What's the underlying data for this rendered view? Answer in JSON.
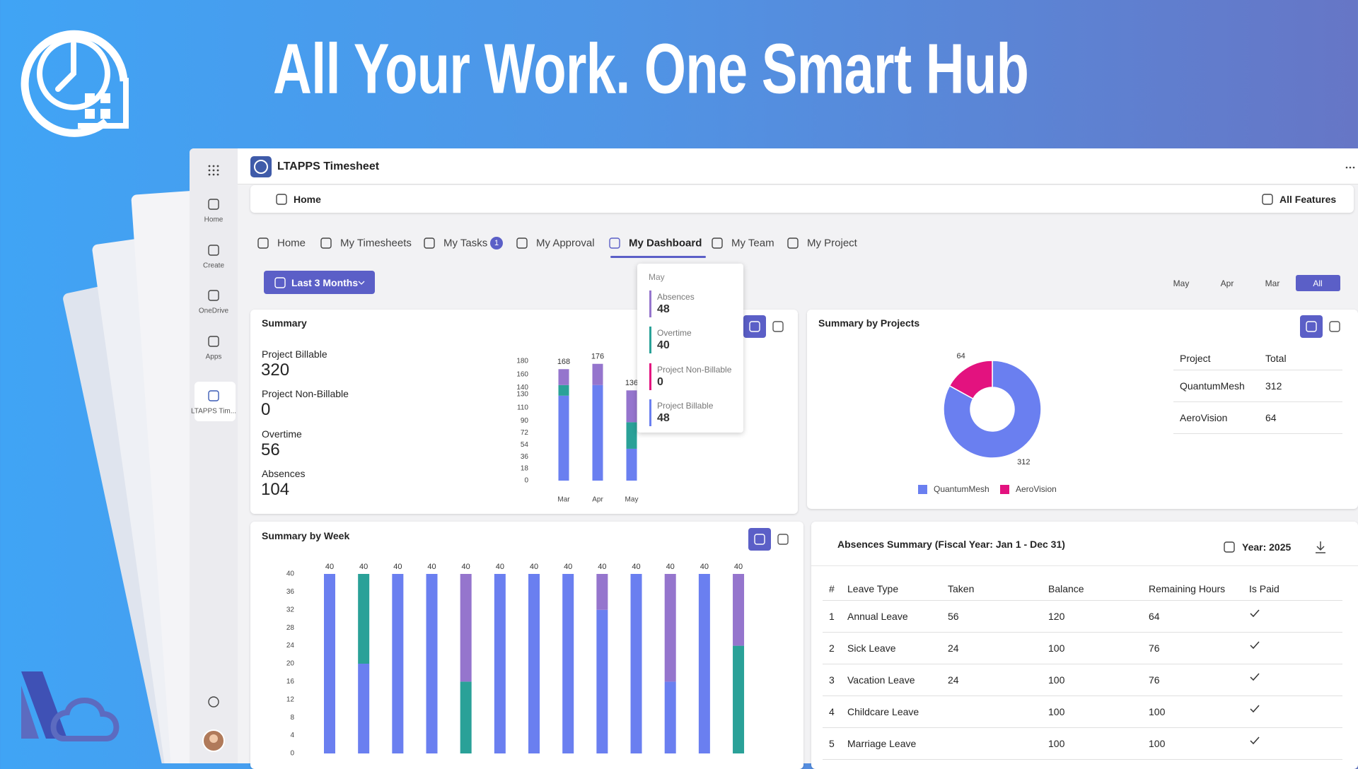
{
  "banner": {
    "headline": "All Your Work. One Smart Hub"
  },
  "app": {
    "title": "LTAPPS Timesheet",
    "rail": [
      "Home",
      "Create",
      "OneDrive",
      "Apps",
      "LTAPPS Tim..."
    ],
    "breadcrumb": "Home",
    "all_features": "All Features"
  },
  "tabs": {
    "items": [
      "Home",
      "My Timesheets",
      "My Tasks",
      "My Approval",
      "My Dashboard",
      "My Team",
      "My Project"
    ],
    "active": "My Dashboard",
    "tasks_badge": 1
  },
  "filter": {
    "range": "Last 3 Months",
    "periods": [
      "May",
      "Apr",
      "Mar",
      "All"
    ],
    "selected": "All"
  },
  "summary": {
    "title": "Summary",
    "stats": [
      {
        "label": "Project Billable",
        "value": 320
      },
      {
        "label": "Project Non-Billable",
        "value": 0
      },
      {
        "label": "Overtime",
        "value": 56
      },
      {
        "label": "Absences",
        "value": 104
      }
    ]
  },
  "summary_chart": {
    "type": "bar",
    "stacked": true,
    "categories": [
      "Mar",
      "Apr",
      "May"
    ],
    "series": [
      {
        "name": "Project Billable",
        "color": "#6a7ff0",
        "values": [
          128,
          144,
          48
        ]
      },
      {
        "name": "Project Non-Billable",
        "color": "#e3127f",
        "values": [
          0,
          0,
          0
        ]
      },
      {
        "name": "Overtime",
        "color": "#2aa198",
        "values": [
          16,
          0,
          40
        ]
      },
      {
        "name": "Absences",
        "color": "#9575cd",
        "values": [
          24,
          32,
          48
        ]
      }
    ],
    "totals": [
      168,
      176,
      136
    ],
    "ylim": [
      0,
      180
    ],
    "yticks": [
      0,
      18,
      36,
      54,
      72,
      90,
      110,
      130,
      140,
      160,
      180
    ]
  },
  "tooltip": {
    "title": "May",
    "items": [
      {
        "label": "Absences",
        "value": 48,
        "color": "#9575cd"
      },
      {
        "label": "Overtime",
        "value": 40,
        "color": "#2aa198"
      },
      {
        "label": "Project Non-Billable",
        "value": 0,
        "color": "#e3127f"
      },
      {
        "label": "Project Billable",
        "value": 48,
        "color": "#6a7ff0"
      }
    ]
  },
  "projects": {
    "title": "Summary by Projects",
    "chart": {
      "type": "pie",
      "donut": true,
      "categories": [
        "QuantumMesh",
        "AeroVision"
      ],
      "values": [
        312,
        64
      ],
      "colors": [
        "#6a7ff0",
        "#e3127f"
      ]
    },
    "table": {
      "headers": [
        "Project",
        "Total"
      ],
      "rows": [
        [
          "QuantumMesh",
          312
        ],
        [
          "AeroVision",
          64
        ]
      ]
    }
  },
  "week": {
    "title": "Summary by Week",
    "chart": {
      "type": "bar",
      "stacked": true,
      "series": [
        {
          "name": "Project Billable",
          "color": "#6a7ff0",
          "values": [
            40,
            20,
            40,
            40,
            0,
            40,
            40,
            40,
            32,
            40,
            16,
            40,
            0
          ]
        },
        {
          "name": "Overtime",
          "color": "#2aa198",
          "values": [
            0,
            20,
            0,
            0,
            16,
            0,
            0,
            0,
            0,
            0,
            0,
            0,
            24
          ]
        },
        {
          "name": "Absences",
          "color": "#9575cd",
          "values": [
            0,
            0,
            0,
            0,
            24,
            0,
            0,
            0,
            8,
            0,
            24,
            0,
            16
          ]
        }
      ],
      "totals": [
        40,
        40,
        40,
        40,
        40,
        40,
        40,
        40,
        40,
        40,
        40,
        40,
        40
      ],
      "ylim": [
        0,
        40
      ],
      "yticks": [
        0,
        4,
        8,
        12,
        16,
        20,
        24,
        28,
        32,
        36,
        40
      ]
    }
  },
  "absences": {
    "title": "Absences Summary (Fiscal Year: Jan 1 - Dec 31)",
    "year": "Year: 2025",
    "table": {
      "headers": [
        "#",
        "Leave Type",
        "Taken",
        "Balance",
        "Remaining Hours",
        "Is Paid"
      ],
      "rows": [
        [
          1,
          "Annual Leave",
          56,
          120,
          64,
          true
        ],
        [
          2,
          "Sick Leave",
          24,
          100,
          76,
          true
        ],
        [
          3,
          "Vacation Leave",
          24,
          100,
          76,
          true
        ],
        [
          4,
          "Childcare Leave",
          null,
          100,
          100,
          true
        ],
        [
          5,
          "Marriage Leave",
          null,
          100,
          100,
          true
        ]
      ]
    }
  }
}
